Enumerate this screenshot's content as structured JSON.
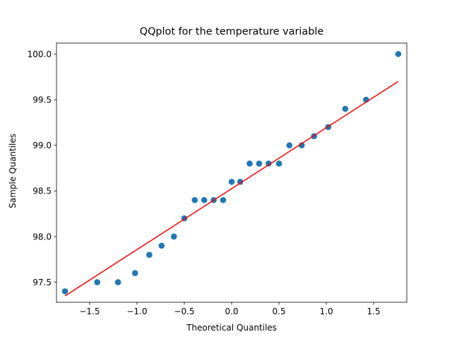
{
  "chart_data": {
    "type": "scatter",
    "title": "QQplot for the temperature variable",
    "xlabel": "Theoretical Quantiles",
    "ylabel": "Sample Quantiles",
    "xlim": [
      -1.85,
      1.85
    ],
    "ylim": [
      97.28,
      100.12
    ],
    "xticks": [
      -1.5,
      -1.0,
      -0.5,
      0.0,
      0.5,
      1.0,
      1.5
    ],
    "xtick_labels": [
      "−1.5",
      "−1.0",
      "−0.5",
      "0.0",
      "0.5",
      "1.0",
      "1.5"
    ],
    "yticks": [
      97.5,
      98.0,
      98.5,
      99.0,
      99.5,
      100.0
    ],
    "ytick_labels": [
      "97.5",
      "98.0",
      "98.5",
      "99.0",
      "99.5",
      "100.0"
    ],
    "grid": false,
    "marker_color": "#1f77b4",
    "line_color": "#ff0000",
    "points": [
      {
        "x": -1.76,
        "y": 97.4
      },
      {
        "x": -1.42,
        "y": 97.5
      },
      {
        "x": -1.2,
        "y": 97.5
      },
      {
        "x": -1.02,
        "y": 97.6
      },
      {
        "x": -0.87,
        "y": 97.8
      },
      {
        "x": -0.74,
        "y": 97.9
      },
      {
        "x": -0.61,
        "y": 98.0
      },
      {
        "x": -0.5,
        "y": 98.2
      },
      {
        "x": -0.39,
        "y": 98.4
      },
      {
        "x": -0.29,
        "y": 98.4
      },
      {
        "x": -0.19,
        "y": 98.4
      },
      {
        "x": -0.09,
        "y": 98.4
      },
      {
        "x": 0.0,
        "y": 98.6
      },
      {
        "x": 0.09,
        "y": 98.6
      },
      {
        "x": 0.19,
        "y": 98.8
      },
      {
        "x": 0.29,
        "y": 98.8
      },
      {
        "x": 0.39,
        "y": 98.8
      },
      {
        "x": 0.5,
        "y": 98.8
      },
      {
        "x": 0.61,
        "y": 99.0
      },
      {
        "x": 0.74,
        "y": 99.0
      },
      {
        "x": 0.87,
        "y": 99.1
      },
      {
        "x": 1.02,
        "y": 99.2
      },
      {
        "x": 1.2,
        "y": 99.4
      },
      {
        "x": 1.42,
        "y": 99.5
      },
      {
        "x": 1.76,
        "y": 100.0
      }
    ],
    "fit_line": {
      "x": [
        -1.76,
        1.76
      ],
      "y": [
        97.35,
        99.7
      ]
    }
  }
}
